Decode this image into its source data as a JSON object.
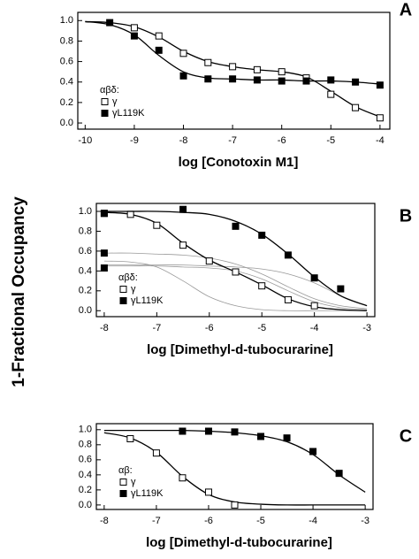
{
  "shared_ylabel": "1-Fractional Occupancy",
  "chart_data": [
    {
      "type": "scatter",
      "panel": "A",
      "xlabel": "log [Conotoxin M1]",
      "legend_title": "αβδ:",
      "legend": "lower left",
      "xlim": [
        -10.15,
        -3.8
      ],
      "xticks": [
        -10,
        -9,
        -8,
        -7,
        -6,
        -5,
        -4
      ],
      "ylim": [
        -0.06,
        1.08
      ],
      "yticks": [
        {
          "value": 0,
          "label": "0.0"
        },
        0.2,
        0.4,
        0.6,
        0.8,
        {
          "value": 1,
          "label": "1.0"
        }
      ],
      "series": [
        {
          "name": "γ",
          "color": "#000",
          "marker_fill": "#fff",
          "x": [
            -9,
            -8.5,
            -8,
            -7.5,
            -7,
            -6.5,
            -6,
            -5.5,
            -5,
            -4.5,
            -4
          ],
          "values": [
            0.93,
            0.85,
            0.68,
            0.59,
            0.55,
            0.52,
            0.5,
            0.44,
            0.28,
            0.15,
            0.05
          ],
          "fit": {
            "x": [
              -10,
              -9.5,
              -9,
              -8.5,
              -8,
              -7.5,
              -7,
              -6.5,
              -6,
              -5.5,
              -5,
              -4.5,
              -4
            ],
            "values": [
              0.99,
              0.98,
              0.94,
              0.84,
              0.7,
              0.6,
              0.55,
              0.52,
              0.5,
              0.45,
              0.31,
              0.16,
              0.06
            ]
          }
        },
        {
          "name": "γL119K",
          "color": "#000",
          "marker_fill": "#000",
          "x": [
            -9.5,
            -9,
            -8.5,
            -8,
            -7.5,
            -7,
            -6.5,
            -6,
            -5.5,
            -5,
            -4.5,
            -4
          ],
          "values": [
            0.98,
            0.85,
            0.71,
            0.46,
            0.43,
            0.43,
            0.42,
            0.41,
            0.41,
            0.42,
            0.4,
            0.37
          ],
          "fit": {
            "x": [
              -10,
              -9.5,
              -9,
              -8.5,
              -8,
              -7.5,
              -7,
              -6.5,
              -6,
              -5.5,
              -5,
              -4.5,
              -4
            ],
            "values": [
              0.99,
              0.96,
              0.86,
              0.66,
              0.5,
              0.44,
              0.43,
              0.42,
              0.42,
              0.41,
              0.41,
              0.4,
              0.38
            ]
          }
        }
      ]
    },
    {
      "type": "scatter",
      "panel": "B",
      "xlabel": "log [Dimethyl-d-tubocurarine]",
      "legend_title": "αβδ:",
      "legend": "lower left",
      "xlim": [
        -8.15,
        -2.85
      ],
      "xticks": [
        -8,
        -7,
        -6,
        -5,
        -4,
        -3
      ],
      "ylim": [
        -0.06,
        1.08
      ],
      "yticks": [
        {
          "value": 0,
          "label": "0.0"
        },
        0.2,
        0.4,
        0.6,
        0.8,
        {
          "value": 1,
          "label": "1.0"
        }
      ],
      "series": [
        {
          "name": "γ",
          "color": "#000",
          "marker_fill": "#fff",
          "x": [
            -8,
            -7.5,
            -7,
            -6.5,
            -6,
            -5.5,
            -5,
            -4.5,
            -4
          ],
          "values": [
            0.98,
            0.97,
            0.86,
            0.66,
            0.5,
            0.39,
            0.25,
            0.11,
            0.05
          ],
          "fit": {
            "x": [
              -8,
              -7.5,
              -7,
              -6.5,
              -6,
              -5.5,
              -5,
              -4.5,
              -4,
              -3.5,
              -3
            ],
            "values": [
              0.99,
              0.97,
              0.88,
              0.68,
              0.51,
              0.39,
              0.26,
              0.12,
              0.04,
              0.01,
              0
            ]
          }
        },
        {
          "name": "γL119K",
          "color": "#000",
          "marker_fill": "#000",
          "x": [
            -8,
            -8,
            -8,
            -6.5,
            -5.5,
            -5,
            -4.5,
            -4,
            -3.5
          ],
          "values": [
            0.98,
            0.58,
            0.43,
            1.02,
            0.85,
            0.76,
            0.56,
            0.33,
            0.22
          ],
          "fit": {
            "x": [
              -8,
              -7.5,
              -7,
              -6.5,
              -6,
              -5.5,
              -5,
              -4.5,
              -4,
              -3.5,
              -3
            ],
            "values": [
              1,
              1,
              1,
              0.99,
              0.97,
              0.9,
              0.77,
              0.57,
              0.34,
              0.15,
              0.05
            ]
          }
        }
      ],
      "components": [
        {
          "color": "#999",
          "x": [
            -8,
            -7.5,
            -7,
            -6.5,
            -6,
            -5.5,
            -5,
            -4.5,
            -4,
            -3.5,
            -3
          ],
          "values": [
            0.58,
            0.58,
            0.57,
            0.56,
            0.53,
            0.47,
            0.37,
            0.24,
            0.12,
            0.05,
            0.02
          ]
        },
        {
          "color": "#999",
          "x": [
            -8,
            -7.5,
            -7,
            -6.5,
            -6,
            -5.5,
            -5,
            -4.5,
            -4,
            -3.5,
            -3
          ],
          "values": [
            0.46,
            0.46,
            0.46,
            0.46,
            0.45,
            0.44,
            0.42,
            0.37,
            0.28,
            0.15,
            0.05
          ]
        },
        {
          "color": "#999",
          "x": [
            -8,
            -7.5,
            -7,
            -6.5,
            -6,
            -5.5,
            -5,
            -4.5,
            -4,
            -3.5,
            -3
          ],
          "values": [
            0.5,
            0.49,
            0.44,
            0.3,
            0.14,
            0.05,
            0.01,
            0,
            0,
            0,
            0
          ]
        },
        {
          "color": "#999",
          "x": [
            -8,
            -7.5,
            -7,
            -6.5,
            -6,
            -5.5,
            -5,
            -4.5,
            -4,
            -3.5,
            -3
          ],
          "values": [
            0.45,
            0.45,
            0.45,
            0.44,
            0.43,
            0.4,
            0.32,
            0.2,
            0.09,
            0.03,
            0.01
          ]
        }
      ]
    },
    {
      "type": "scatter",
      "panel": "C",
      "xlabel": "log [Dimethyl-d-tubocurarine]",
      "legend_title": "αβ:",
      "legend": "lower left",
      "xlim": [
        -8.15,
        -2.85
      ],
      "xticks": [
        -8,
        -7,
        -6,
        -5,
        -4,
        -3
      ],
      "ylim": [
        -0.06,
        1.08
      ],
      "yticks": [
        {
          "value": 0,
          "label": "0.0"
        },
        0.2,
        0.4,
        0.6,
        0.8,
        {
          "value": 1,
          "label": "1.0"
        }
      ],
      "series": [
        {
          "name": "γ",
          "color": "#000",
          "marker_fill": "#fff",
          "x": [
            -7.5,
            -7,
            -6.5,
            -6,
            -5.5
          ],
          "values": [
            0.88,
            0.69,
            0.36,
            0.17,
            0
          ],
          "fit": {
            "x": [
              -8,
              -7.5,
              -7,
              -6.5,
              -6,
              -5.5,
              -5,
              -4.5,
              -4,
              -3.5,
              -3
            ],
            "values": [
              0.96,
              0.89,
              0.7,
              0.38,
              0.14,
              0.04,
              0.01,
              0,
              0,
              0,
              0
            ]
          }
        },
        {
          "name": "γL119K",
          "color": "#000",
          "marker_fill": "#000",
          "x": [
            -6.5,
            -6,
            -5.5,
            -5,
            -4.5,
            -4,
            -3.5
          ],
          "values": [
            0.98,
            0.98,
            0.97,
            0.91,
            0.89,
            0.71,
            0.42
          ],
          "fit": {
            "x": [
              -8,
              -7.5,
              -7,
              -6.5,
              -6,
              -5.5,
              -5,
              -4.5,
              -4,
              -3.5,
              -3
            ],
            "values": [
              0.99,
              0.99,
              0.99,
              0.99,
              0.98,
              0.96,
              0.92,
              0.84,
              0.67,
              0.4,
              0.17
            ]
          }
        }
      ]
    }
  ]
}
